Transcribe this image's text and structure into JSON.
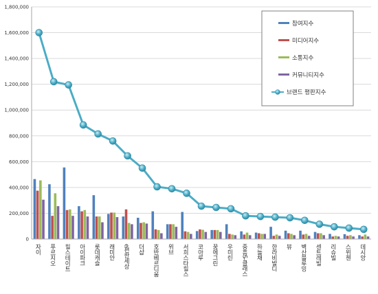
{
  "chart_data": {
    "type": "bar",
    "overlay_type": "line",
    "categories": [
      "자이",
      "푸르지오",
      "힐스테이트",
      "아이파크",
      "롯데캐슬",
      "래미안",
      "e편한세상",
      "더샵",
      "호반베르디움",
      "위브",
      "서희스타힐스",
      "코아루",
      "꿈에그린",
      "우미린",
      "중흥S-클래스",
      "하늘채",
      "한라비발디",
      "뷰",
      "벽산블루밍",
      "센트레빌",
      "리슈빌",
      "스위첸",
      "데시앙"
    ],
    "ylim": [
      0,
      1800000
    ],
    "yticks": [
      "0",
      "200,000",
      "400,000",
      "600,000",
      "800,000",
      "1,000,000",
      "1,200,000",
      "1,400,000",
      "1,600,000",
      "1,800,000"
    ],
    "grid": true,
    "legend_position": "top-right",
    "series": [
      {
        "name": "참여지수",
        "kind": "bar",
        "color": "#4f81bd",
        "values": [
          465000,
          425000,
          555000,
          255000,
          340000,
          195000,
          175000,
          165000,
          215000,
          115000,
          210000,
          62000,
          70000,
          115000,
          60000,
          50000,
          95000,
          65000,
          65000,
          55000,
          40000,
          38000,
          30000
        ]
      },
      {
        "name": "미디어지수",
        "kind": "bar",
        "color": "#c0504d",
        "values": [
          375000,
          180000,
          225000,
          215000,
          175000,
          205000,
          230000,
          125000,
          75000,
          115000,
          60000,
          75000,
          70000,
          40000,
          35000,
          45000,
          25000,
          45000,
          35000,
          45000,
          20000,
          25000,
          20000
        ]
      },
      {
        "name": "소통지수",
        "kind": "bar",
        "color": "#9bbb59",
        "values": [
          455000,
          355000,
          230000,
          225000,
          175000,
          205000,
          125000,
          130000,
          70000,
          115000,
          55000,
          72000,
          70000,
          35000,
          50000,
          40000,
          35000,
          40000,
          40000,
          45000,
          25000,
          30000,
          35000
        ]
      },
      {
        "name": "커뮤니티지수",
        "kind": "bar",
        "color": "#8064a2",
        "values": [
          305000,
          255000,
          180000,
          175000,
          130000,
          170000,
          115000,
          120000,
          45000,
          95000,
          40000,
          55000,
          55000,
          30000,
          30000,
          40000,
          25000,
          30000,
          25000,
          30000,
          20000,
          20000,
          20000
        ]
      },
      {
        "name": "브랜드 평판지수",
        "kind": "line",
        "color": "#4bacc6",
        "values": [
          1600000,
          1220000,
          1195000,
          885000,
          815000,
          760000,
          645000,
          550000,
          405000,
          390000,
          355000,
          255000,
          245000,
          235000,
          180000,
          175000,
          170000,
          165000,
          145000,
          115000,
          95000,
          85000,
          75000
        ]
      }
    ]
  }
}
